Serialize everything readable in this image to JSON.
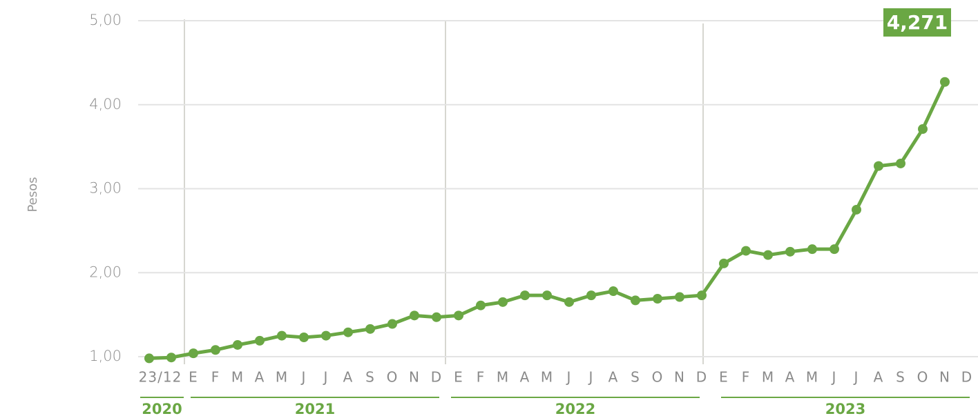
{
  "chart_data": {
    "type": "line",
    "y_label": "Pesos",
    "categories": [
      "23/12",
      null,
      "E",
      "F",
      "M",
      "A",
      "M",
      "J",
      "J",
      "A",
      "S",
      "O",
      "N",
      "D",
      "E",
      "F",
      "M",
      "A",
      "M",
      "J",
      "J",
      "A",
      "S",
      "O",
      "N",
      "D",
      "E",
      "F",
      "M",
      "A",
      "M",
      "J",
      "J",
      "A",
      "S",
      "O",
      "N",
      "D"
    ],
    "series": [
      {
        "name": "Pesos",
        "color": "#6aa744",
        "values": [
          0.98,
          0.99,
          1.04,
          1.08,
          1.14,
          1.19,
          1.25,
          1.23,
          1.25,
          1.29,
          1.33,
          1.39,
          1.49,
          1.47,
          1.49,
          1.61,
          1.65,
          1.73,
          1.73,
          1.65,
          1.73,
          1.78,
          1.67,
          1.69,
          1.71,
          1.73,
          2.11,
          2.26,
          2.21,
          2.25,
          2.28,
          2.28,
          2.75,
          3.27,
          3.3,
          3.71,
          4.271,
          null
        ],
        "value_labels": [
          null,
          null,
          null,
          null,
          null,
          null,
          null,
          null,
          null,
          null,
          null,
          null,
          null,
          null,
          null,
          null,
          null,
          null,
          null,
          null,
          null,
          null,
          null,
          null,
          null,
          null,
          null,
          null,
          null,
          null,
          null,
          null,
          null,
          null,
          null,
          null,
          "4,271",
          null
        ]
      }
    ],
    "groups": [
      "2020",
      "2021",
      "2022",
      "2023"
    ],
    "ylim": [
      1,
      5
    ],
    "yticks": [
      {
        "value": 1,
        "label": "1,00"
      },
      {
        "value": 2,
        "label": "2,00"
      },
      {
        "value": 3,
        "label": "3,00"
      },
      {
        "value": 4,
        "label": "4,00"
      },
      {
        "value": 5,
        "label": "5,00"
      }
    ],
    "grid": true
  }
}
